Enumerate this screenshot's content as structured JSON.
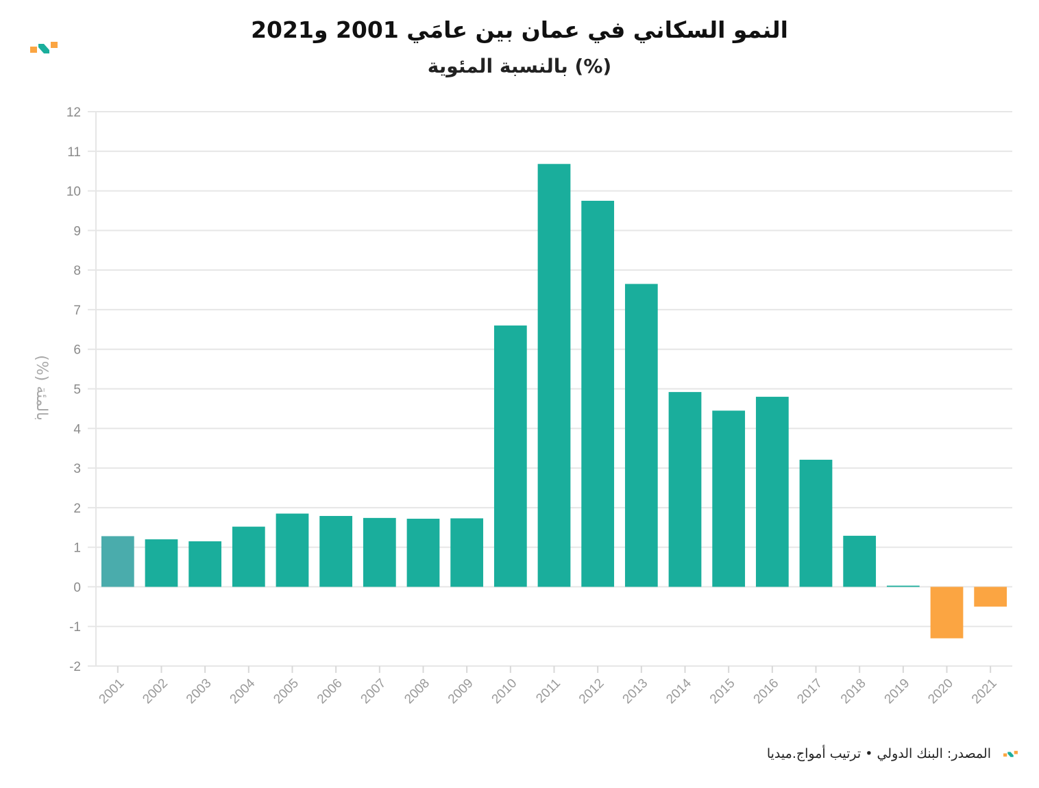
{
  "header": {
    "title": "النمو السكاني في عمان بين عامَي 2001 و2021",
    "subtitle": "بالنسبة المئوية (%)"
  },
  "brand": {
    "logo_icon": "amwaj-logo-icon",
    "colors": {
      "teal": "#1aae9c",
      "orange": "#fba542",
      "highlight": "#4aacac"
    }
  },
  "footer": {
    "source": "المصدر: البنك الدولي • ترتيب أمواج.ميديا"
  },
  "chart_data": {
    "type": "bar",
    "title": "النمو السكاني في عمان بين عامَي 2001 و2021",
    "subtitle": "بالنسبة المئوية (%)",
    "xlabel": "",
    "ylabel": "بالمئة (%)",
    "ylim": [
      -2,
      12
    ],
    "yticks": [
      -2,
      -1,
      0,
      1,
      2,
      3,
      4,
      5,
      6,
      7,
      8,
      9,
      10,
      11,
      12
    ],
    "grid": true,
    "categories": [
      "2001",
      "2002",
      "2003",
      "2004",
      "2005",
      "2006",
      "2007",
      "2008",
      "2009",
      "2010",
      "2011",
      "2012",
      "2013",
      "2014",
      "2015",
      "2016",
      "2017",
      "2018",
      "2019",
      "2020",
      "2021"
    ],
    "values": [
      1.28,
      1.2,
      1.15,
      1.52,
      1.85,
      1.79,
      1.74,
      1.72,
      1.73,
      6.6,
      10.68,
      9.75,
      7.65,
      4.92,
      4.45,
      4.8,
      3.21,
      1.29,
      0.03,
      -1.3,
      -0.5
    ],
    "colors": {
      "positive": "#1aae9c",
      "negative": "#fba542",
      "first": "#4aacac"
    }
  }
}
